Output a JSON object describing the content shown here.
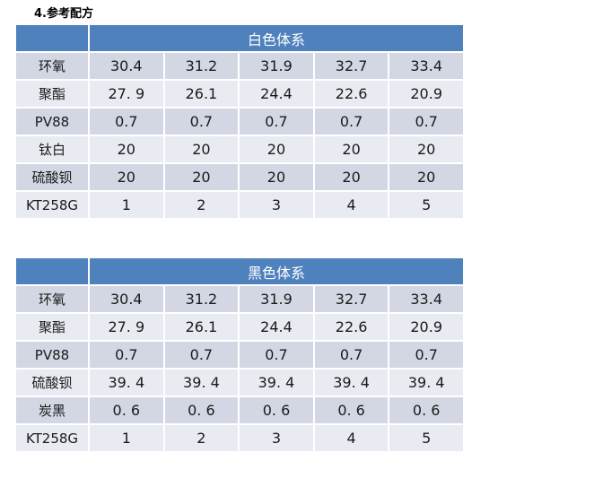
{
  "page_title": "4.参考配方",
  "colors": {
    "header_bg": "#4F81BD",
    "header_text": "#FFFFFF",
    "row_band_dark": "#D2D7E3",
    "row_band_light": "#E9EBF2",
    "cell_text": "#1A1A1A",
    "title_text": "#000000"
  },
  "tables": [
    {
      "name": "white-system",
      "header": "白色体系",
      "column_count": 5,
      "rows": [
        {
          "label": "环氧",
          "values": [
            "30.4",
            "31.2",
            "31.9",
            "32.7",
            "33.4"
          ]
        },
        {
          "label": "聚酯",
          "values": [
            "27. 9",
            "26.1",
            "24.4",
            "22.6",
            "20.9"
          ]
        },
        {
          "label": "PV88",
          "values": [
            "0.7",
            "0.7",
            "0.7",
            "0.7",
            "0.7"
          ]
        },
        {
          "label": "钛白",
          "values": [
            "20",
            "20",
            "20",
            "20",
            "20"
          ]
        },
        {
          "label": "硫酸钡",
          "values": [
            "20",
            "20",
            "20",
            "20",
            "20"
          ]
        },
        {
          "label": "KT258G",
          "values": [
            "1",
            "2",
            "3",
            "4",
            "5"
          ]
        }
      ]
    },
    {
      "name": "black-system",
      "header": "黑色体系",
      "column_count": 5,
      "rows": [
        {
          "label": "环氧",
          "values": [
            "30.4",
            "31.2",
            "31.9",
            "32.7",
            "33.4"
          ]
        },
        {
          "label": "聚酯",
          "values": [
            "27. 9",
            "26.1",
            "24.4",
            "22.6",
            "20.9"
          ]
        },
        {
          "label": "PV88",
          "values": [
            "0.7",
            "0.7",
            "0.7",
            "0.7",
            "0.7"
          ]
        },
        {
          "label": "硫酸钡",
          "values": [
            "39. 4",
            "39. 4",
            "39. 4",
            "39. 4",
            "39. 4"
          ]
        },
        {
          "label": "炭黑",
          "values": [
            "0. 6",
            "0. 6",
            "0. 6",
            "0. 6",
            "0. 6"
          ]
        },
        {
          "label": "KT258G",
          "values": [
            "1",
            "2",
            "3",
            "4",
            "5"
          ]
        }
      ]
    }
  ]
}
